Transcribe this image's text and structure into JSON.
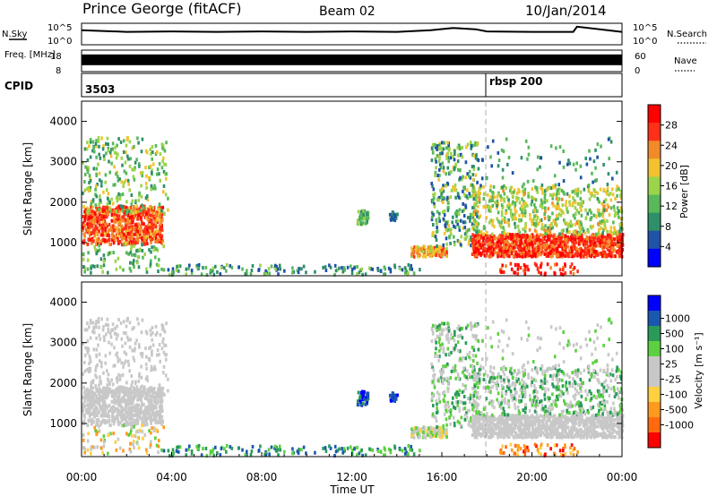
{
  "header": {
    "station": "Prince George (fitACF)",
    "beam": "Beam 02",
    "date": "10/Jan/2014"
  },
  "colors": {
    "ink": "#000000",
    "power_scale": [
      "#0000ff",
      "#1f52a8",
      "#2f8f6a",
      "#58b85a",
      "#9bd44a",
      "#f2c230",
      "#f08a2a",
      "#ff3018",
      "#ff0000"
    ],
    "velocity_scale": [
      "#ff0000",
      "#ff6a10",
      "#ff9a20",
      "#ffd040",
      "#c8c8c8",
      "#c8c8c8",
      "#5cd040",
      "#2a9a5a",
      "#1a58b0",
      "#0000ff"
    ]
  },
  "chart_data": [
    {
      "type": "line",
      "panel": "N.Sky / N.Search",
      "ylabel_left": "N.Sky",
      "ylabel_right": "N.Search",
      "left_ticks": [
        "10^5",
        "10^0"
      ],
      "right_ticks": [
        "10^5",
        "10^0"
      ],
      "x": [
        "00:00",
        "02:00",
        "04:00",
        "06:00",
        "08:00",
        "10:00",
        "12:00",
        "14:00",
        "15:30",
        "16:30",
        "17:30",
        "18:00",
        "20:00",
        "21:50",
        "22:00",
        "24:00"
      ],
      "series": [
        {
          "values": [
            3.4,
            3.0,
            3.1,
            3.0,
            3.1,
            3.0,
            3.1,
            3.0,
            3.4,
            3.9,
            3.6,
            3.1,
            3.0,
            3.0,
            4.2,
            3.0
          ]
        }
      ]
    },
    {
      "type": "line",
      "panel": "Freq / Nave",
      "ylabel_left": "Freq. [MHz]",
      "ylabel_right": "Nave",
      "left_ticks": [
        8,
        18
      ],
      "right_ticks": [
        0,
        60
      ],
      "x": [
        "00:00",
        "18:00",
        "24:00"
      ],
      "series": [
        {
          "values": [
            13.5,
            13.5,
            13.5
          ]
        },
        {
          "values": [
            null,
            39,
            39
          ]
        }
      ]
    },
    {
      "type": "table",
      "panel": "CPID",
      "label": "CPID",
      "segments": [
        {
          "start": "00:00",
          "label": "3503"
        },
        {
          "start": "18:00",
          "label": "rbsp 200"
        }
      ]
    },
    {
      "type": "heatmap",
      "panel": "Power",
      "ylabel": "Slant Range [km]",
      "yticks": [
        1000,
        2000,
        3000,
        4000
      ],
      "ylim": [
        180,
        4500
      ],
      "xticks": [
        "00:00",
        "04:00",
        "08:00",
        "12:00",
        "16:00",
        "20:00",
        "00:00"
      ],
      "xlim": [
        0,
        24
      ],
      "colorbar_label": "Power [dB]",
      "colorbar_ticks": [
        4,
        8,
        12,
        16,
        20,
        24,
        28
      ],
      "colorbar_range": [
        0,
        32
      ]
    },
    {
      "type": "heatmap",
      "panel": "Velocity",
      "ylabel": "Slant Range [km]",
      "yticks": [
        1000,
        2000,
        3000,
        4000
      ],
      "ylim": [
        180,
        4500
      ],
      "xticks": [
        "00:00",
        "04:00",
        "08:00",
        "12:00",
        "16:00",
        "20:00",
        "00:00"
      ],
      "xlim": [
        0,
        24
      ],
      "xlabel": "Time UT",
      "colorbar_label": "Velocity [m s⁻¹]",
      "colorbar_ticks": [
        1000,
        500,
        100,
        25,
        -25,
        -100,
        -500,
        -1000
      ]
    }
  ]
}
